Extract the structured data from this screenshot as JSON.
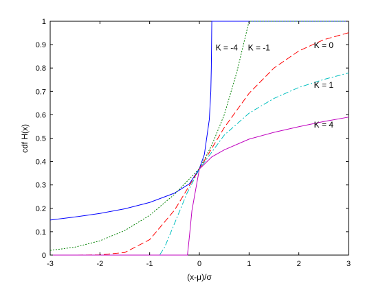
{
  "chart_data": {
    "type": "line",
    "title": "",
    "xlabel": "(x-μ)/σ",
    "ylabel": "cdf H(x)",
    "xlim": [
      -3,
      3
    ],
    "ylim": [
      0,
      1
    ],
    "grid": false,
    "legend": "none",
    "x_ticks": [
      "-3",
      "-2",
      "-1",
      "0",
      "1",
      "2",
      "3"
    ],
    "y_ticks": [
      "0",
      "0.1",
      "0.2",
      "0.3",
      "0.4",
      "0.5",
      "0.6",
      "0.7",
      "0.8",
      "0.9",
      "1"
    ],
    "series": [
      {
        "label": "K = -4",
        "color": "#0000ff",
        "style": "solid",
        "x": [
          -3,
          -2.5,
          -2,
          -1.5,
          -1,
          -0.5,
          -0.2,
          0,
          0.1,
          0.2,
          0.23,
          0.24,
          0.25,
          3
        ],
        "y": [
          0.15,
          0.163,
          0.178,
          0.198,
          0.225,
          0.265,
          0.305,
          0.37,
          0.43,
          0.58,
          0.7,
          0.8,
          1.0,
          1.0
        ]
      },
      {
        "label": "K = -1",
        "color": "#008000",
        "style": "dotted",
        "x": [
          -3,
          -2.5,
          -2,
          -1.5,
          -1,
          -0.5,
          0,
          0.25,
          0.5,
          0.75,
          1,
          3
        ],
        "y": [
          0.02,
          0.034,
          0.061,
          0.105,
          0.17,
          0.26,
          0.37,
          0.47,
          0.6,
          0.78,
          1.0,
          1.0
        ]
      },
      {
        "label": "K = 0",
        "color": "#ff0000",
        "style": "dashed",
        "x": [
          -3,
          -2.5,
          -2,
          -1.5,
          -1,
          -0.5,
          0,
          0.5,
          1,
          1.5,
          2,
          2.5,
          3
        ],
        "y": [
          0.0,
          0.0,
          0.001,
          0.011,
          0.066,
          0.192,
          0.368,
          0.545,
          0.692,
          0.8,
          0.873,
          0.921,
          0.951
        ]
      },
      {
        "label": "K = 1",
        "color": "#00bfbf",
        "style": "dashdot",
        "x": [
          -3,
          -0.9,
          -0.8,
          -0.7,
          -0.5,
          -0.25,
          0,
          0.5,
          1,
          1.5,
          2,
          2.5,
          3
        ],
        "y": [
          0.0,
          0.0,
          0.0,
          0.033,
          0.135,
          0.264,
          0.368,
          0.513,
          0.607,
          0.67,
          0.717,
          0.751,
          0.779
        ]
      },
      {
        "label": "K = 4",
        "color": "#bf00bf",
        "style": "solid",
        "x": [
          -3,
          -0.25,
          -0.24,
          -0.2,
          -0.15,
          -0.1,
          0,
          0.25,
          0.5,
          1,
          1.5,
          2,
          2.5,
          3
        ],
        "y": [
          0.0,
          0.0,
          0.0,
          0.08,
          0.19,
          0.25,
          0.368,
          0.42,
          0.45,
          0.496,
          0.525,
          0.549,
          0.571,
          0.59
        ]
      }
    ],
    "annotations": [
      {
        "text": "K = -4",
        "x": 0.55,
        "y": 0.875
      },
      {
        "text": "K = -1",
        "x": 1.2,
        "y": 0.875
      },
      {
        "text": "K = 0",
        "x": 2.5,
        "y": 0.885
      },
      {
        "text": "K = 1",
        "x": 2.5,
        "y": 0.715
      },
      {
        "text": "K = 4",
        "x": 2.5,
        "y": 0.545
      }
    ]
  }
}
